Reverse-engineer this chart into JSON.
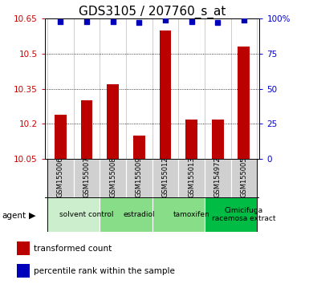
{
  "title": "GDS3105 / 207760_s_at",
  "samples": [
    "GSM155006",
    "GSM155007",
    "GSM155008",
    "GSM155009",
    "GSM155012",
    "GSM155013",
    "GSM154972",
    "GSM155005"
  ],
  "bar_values": [
    10.24,
    10.3,
    10.37,
    10.15,
    10.6,
    10.22,
    10.22,
    10.53
  ],
  "percentile_values": [
    98,
    98,
    98,
    97,
    99,
    98,
    97,
    99
  ],
  "ylim_left": [
    10.05,
    10.65
  ],
  "ylim_right": [
    0,
    100
  ],
  "yticks_left": [
    10.05,
    10.2,
    10.35,
    10.5,
    10.65
  ],
  "yticks_right": [
    0,
    25,
    50,
    75,
    100
  ],
  "ytick_labels_left": [
    "10.05",
    "10.2",
    "10.35",
    "10.5",
    "10.65"
  ],
  "ytick_labels_right": [
    "0",
    "25",
    "50",
    "75",
    "100%"
  ],
  "bar_color": "#bb0000",
  "dot_color": "#0000bb",
  "agent_groups": [
    {
      "label": "solvent control",
      "start": 0,
      "end": 2,
      "color": "#cceecc"
    },
    {
      "label": "estradiol",
      "start": 2,
      "end": 4,
      "color": "#88dd88"
    },
    {
      "label": "tamoxifen",
      "start": 4,
      "end": 6,
      "color": "#88dd88"
    },
    {
      "label": "Cimicifuga\nracemosa extract",
      "start": 6,
      "end": 8,
      "color": "#00bb44"
    }
  ],
  "legend_bar_label": "transformed count",
  "legend_dot_label": "percentile rank within the sample",
  "title_fontsize": 11,
  "tick_fontsize": 7.5,
  "bar_width": 0.45
}
